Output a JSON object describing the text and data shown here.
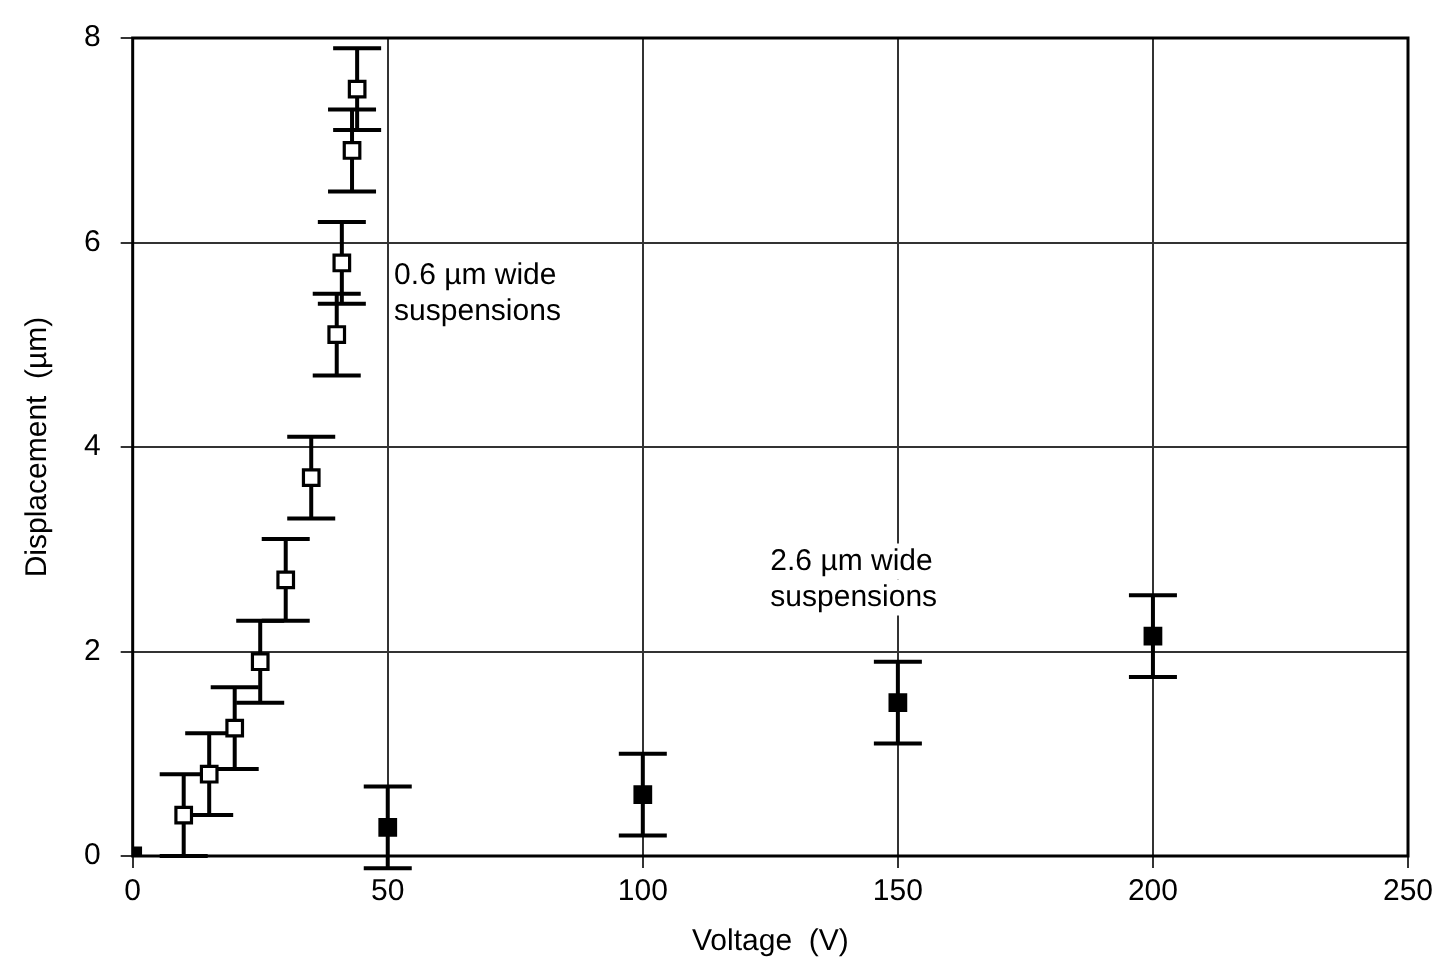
{
  "chart_data": {
    "type": "scatter",
    "xlabel": "Voltage  (V)",
    "ylabel": "Displacement  (µm)",
    "xlim": [
      0,
      250
    ],
    "xticks": [
      0,
      50,
      100,
      150,
      200,
      250
    ],
    "ylim": [
      0,
      8
    ],
    "yticks": [
      0,
      2,
      4,
      6,
      8
    ],
    "grid": true,
    "marker": "square",
    "series": [
      {
        "color": "#000000",
        "x": [
          10,
          15,
          20,
          25,
          30,
          35,
          40,
          41,
          43,
          44
        ],
        "values": [
          0.4,
          0.8,
          1.25,
          1.9,
          2.7,
          3.7,
          5.1,
          5.8,
          6.9,
          7.5
        ],
        "errors": [
          0.4,
          0.4,
          0.4,
          0.4,
          0.4,
          0.4,
          0.4,
          0.4,
          0.4,
          0.4
        ]
      },
      {
        "color": "#000000",
        "x": [
          0,
          50,
          100,
          150,
          200
        ],
        "values": [
          0,
          0.28,
          0.6,
          1.5,
          2.15
        ],
        "errors": [
          null,
          0.4,
          0.4,
          0.4,
          0.4
        ]
      }
    ],
    "annotations": [
      "0.6 µm wide\nsuspensions",
      "2.6 µm wide\nsuspensions"
    ]
  }
}
